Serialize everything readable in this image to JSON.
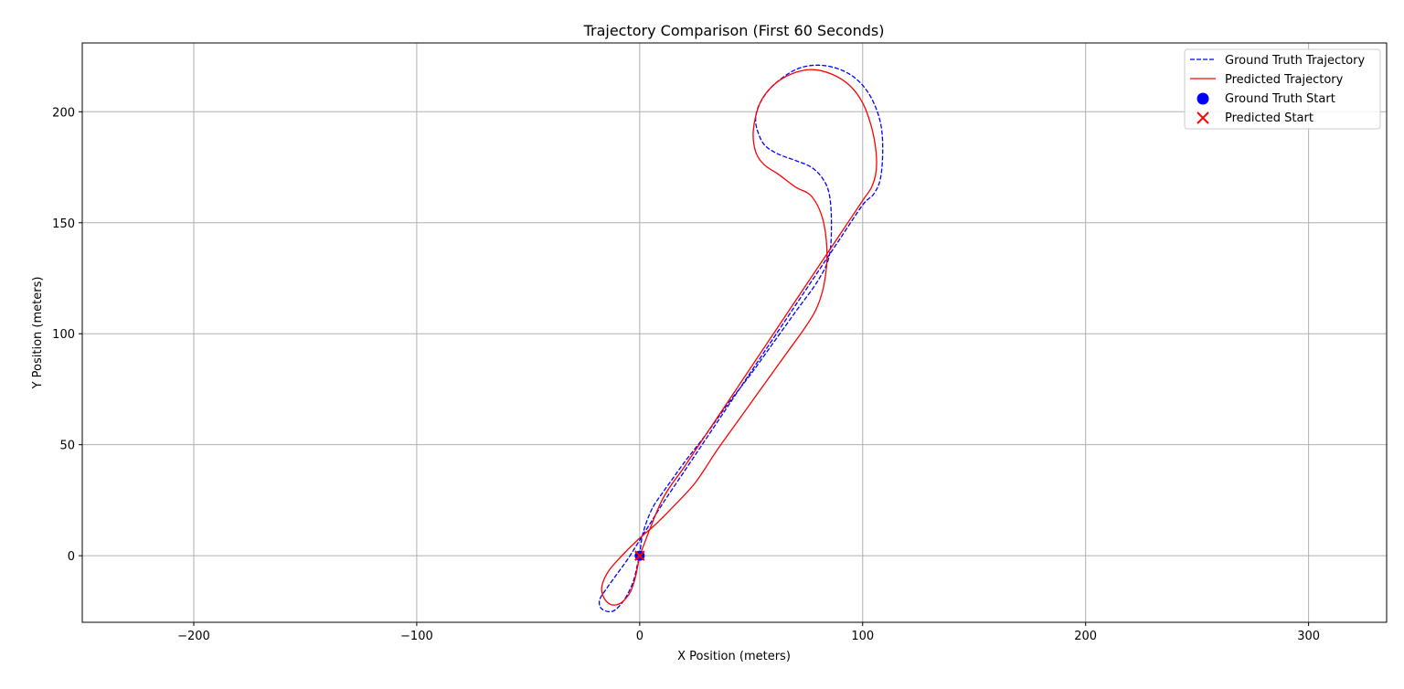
{
  "chart_data": {
    "type": "line",
    "title": "Trajectory Comparison (First 60 Seconds)",
    "xlabel": "X Position (meters)",
    "ylabel": "Y Position (meters)",
    "xlim": [
      -250,
      335
    ],
    "ylim": [
      -30,
      231
    ],
    "xticks": [
      -200,
      -100,
      0,
      100,
      200,
      300
    ],
    "yticks": [
      0,
      50,
      100,
      150,
      200
    ],
    "xtick_labels": [
      "−200",
      "−100",
      "0",
      "100",
      "200",
      "300"
    ],
    "ytick_labels": [
      "0",
      "50",
      "100",
      "150",
      "200"
    ],
    "grid": true,
    "legend_position": "top-right",
    "series": [
      {
        "name": "Ground Truth Trajectory",
        "style": "dashed",
        "color": "#0000ff",
        "x": [
          0,
          1,
          3,
          6,
          10,
          15,
          20,
          30,
          40,
          50,
          60,
          70,
          80,
          85,
          86,
          85,
          82,
          77,
          70,
          62,
          56,
          53,
          52,
          54,
          60,
          70,
          80,
          90,
          98,
          104,
          108,
          109,
          108,
          105,
          100,
          90,
          80,
          70,
          60,
          50,
          40,
          30,
          20,
          10,
          5,
          0,
          -5,
          -10,
          -15,
          -18,
          -17,
          -12,
          -7,
          -3,
          -1,
          0
        ],
        "y": [
          0,
          8,
          15,
          22,
          28,
          35,
          42,
          55,
          69,
          82,
          96,
          110,
          124,
          135,
          150,
          163,
          170,
          175,
          178,
          181,
          185,
          191,
          197,
          204,
          212,
          219,
          221,
          219,
          214,
          206,
          195,
          183,
          170,
          163,
          158,
          143,
          128,
          113,
          98,
          83,
          68,
          53,
          38,
          23,
          15,
          7,
          -1,
          -8,
          -15,
          -20,
          -24,
          -25,
          -20,
          -12,
          -4,
          0
        ]
      },
      {
        "name": "Predicted Trajectory",
        "style": "solid",
        "color": "#ff0000",
        "x": [
          0,
          -2,
          -4,
          -6,
          -8,
          -10,
          -13,
          -16,
          -17,
          -14,
          -8,
          -1,
          7,
          14,
          25,
          35,
          45,
          55,
          65,
          75,
          80,
          83,
          84,
          82,
          77,
          70,
          62,
          56,
          52,
          51,
          54,
          60,
          68,
          77,
          86,
          94,
          100,
          104,
          106,
          106,
          104,
          100,
          90,
          80,
          70,
          60,
          50,
          40,
          30,
          20,
          10,
          0
        ],
        "y": [
          0,
          -10,
          -16,
          -19,
          -21,
          -22,
          -22,
          -19,
          -14,
          -7,
          0,
          7,
          14,
          21,
          33,
          48,
          62,
          76,
          90,
          104,
          113,
          124,
          137,
          152,
          162,
          166,
          172,
          176,
          182,
          192,
          204,
          212,
          217,
          219,
          217,
          212,
          204,
          193,
          182,
          173,
          166,
          160,
          145,
          130,
          115,
          100,
          85,
          70,
          55,
          40,
          25,
          0
        ]
      }
    ],
    "markers": [
      {
        "name": "Ground Truth Start",
        "shape": "circle",
        "color": "#0000ff",
        "x": 0,
        "y": 0
      },
      {
        "name": "Predicted Start",
        "shape": "x",
        "color": "#ff0000",
        "x": 0,
        "y": 0
      }
    ]
  }
}
